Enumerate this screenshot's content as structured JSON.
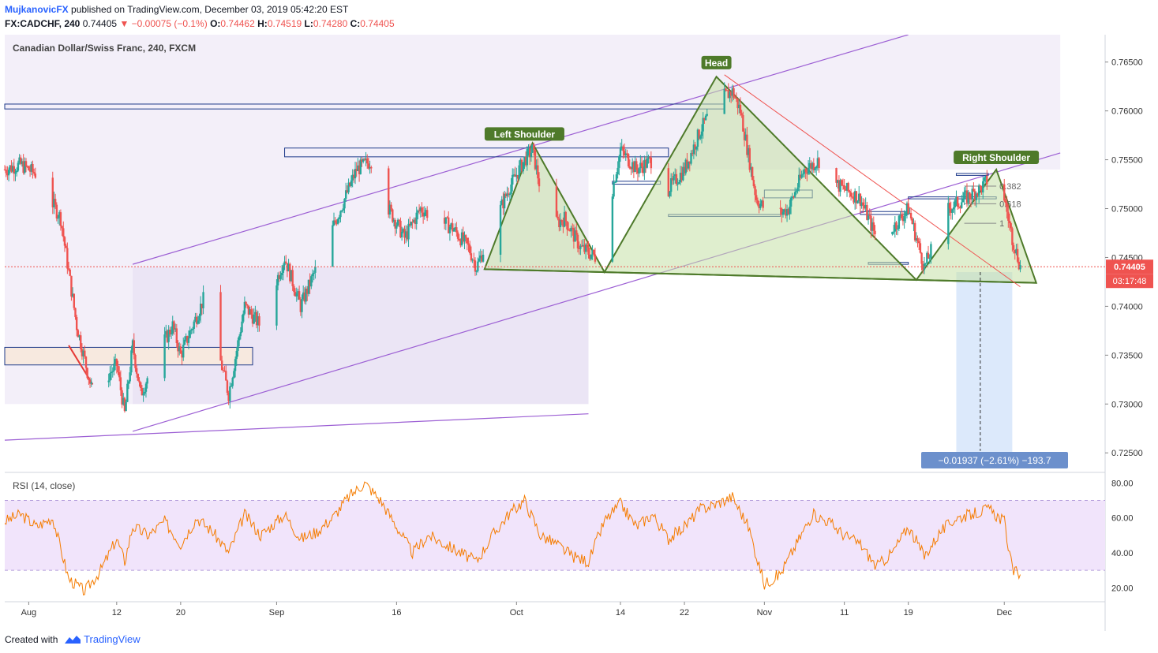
{
  "header": {
    "author": "MujkanovicFX",
    "published_text": "published on TradingView.com, December 03, 2019 05:42:20 EST",
    "symbol": "FX:CADCHF, 240",
    "last": "0.74405",
    "change": "▼ −0.00075 (−0.1%)",
    "o_label": "O:",
    "o_value": "0.74462",
    "h_label": "H:",
    "h_value": "0.74519",
    "l_label": "L:",
    "l_value": "0.74280",
    "c_label": "C:",
    "c_value": "0.74405"
  },
  "colors": {
    "up": "#26a69a",
    "down": "#ef5350",
    "channel": "#9c5fd4",
    "pattern": "#4e7a2a",
    "pattern_fill": "#c5e0a5",
    "box_line": "#1e3a8a",
    "rsi": "#f57c00",
    "rsi_band": "#f1e4fb",
    "price_tag": "#ef5350",
    "range_fill": "#dce9fb",
    "range_label": "#6c90cc"
  },
  "chart_data": {
    "type": "candlestick",
    "title": "Canadian Dollar/Swiss Franc, 240, FXCM",
    "y_ticks": [
      "0.76500",
      "0.76000",
      "0.75500",
      "0.75000",
      "0.74500",
      "0.74000",
      "0.73500",
      "0.73000",
      "0.72500"
    ],
    "ylim": [
      0.723,
      0.7678
    ],
    "x_ticks": [
      "Aug",
      "12",
      "20",
      "Sep",
      "16",
      "Oct",
      "14",
      "22",
      "Nov",
      "11",
      "19",
      "Dec"
    ],
    "last_price": "0.74405",
    "countdown": "03:17:48",
    "close_path": [
      [
        "Jul 29",
        0.754
      ],
      [
        "Jul 31",
        0.7545
      ],
      [
        "Aug 02",
        0.7535
      ],
      [
        "Aug 05",
        0.749
      ],
      [
        "Aug 07",
        0.738
      ],
      [
        "Aug 09",
        0.731
      ],
      [
        "Aug 10",
        0.732
      ],
      [
        "Aug 12",
        0.734
      ],
      [
        "Aug 13",
        0.729
      ],
      [
        "Aug 14",
        0.736
      ],
      [
        "Aug 15",
        0.731
      ],
      [
        "Aug 17",
        0.735
      ],
      [
        "Aug 19",
        0.738
      ],
      [
        "Aug 20",
        0.735
      ],
      [
        "Aug 22",
        0.739
      ],
      [
        "Aug 23",
        0.741
      ],
      [
        "Aug 26",
        0.731
      ],
      [
        "Aug 28",
        0.74
      ],
      [
        "Aug 30",
        0.738
      ],
      [
        "Sep 02",
        0.745
      ],
      [
        "Sep 04",
        0.74
      ],
      [
        "Sep 06",
        0.744
      ],
      [
        "Sep 09",
        0.75
      ],
      [
        "Sep 11",
        0.754
      ],
      [
        "Sep 13",
        0.755
      ],
      [
        "Sep 15",
        0.75
      ],
      [
        "Sep 17",
        0.747
      ],
      [
        "Sep 19",
        0.75
      ],
      [
        "Sep 21",
        0.749
      ],
      [
        "Sep 23",
        0.748
      ],
      [
        "Sep 25",
        0.746
      ],
      [
        "Sep 26",
        0.744
      ],
      [
        "Sep 28",
        0.748
      ],
      [
        "Sep 30",
        0.752
      ],
      [
        "Oct 02",
        0.755
      ],
      [
        "Oct 03",
        0.756
      ],
      [
        "Oct 05",
        0.748
      ],
      [
        "Oct 07",
        0.749
      ],
      [
        "Oct 09",
        0.746
      ],
      [
        "Oct 11",
        0.745
      ],
      [
        "Oct 13",
        0.752
      ],
      [
        "Oct 14",
        0.756
      ],
      [
        "Oct 16",
        0.754
      ],
      [
        "Oct 18",
        0.755
      ],
      [
        "Oct 20",
        0.752
      ],
      [
        "Oct 22",
        0.754
      ],
      [
        "Oct 24",
        0.758
      ],
      [
        "Oct 26",
        0.761
      ],
      [
        "Oct 28",
        0.762
      ],
      [
        "Oct 29",
        0.76
      ],
      [
        "Oct 31",
        0.751
      ],
      [
        "Nov 02",
        0.749
      ],
      [
        "Nov 04",
        0.75
      ],
      [
        "Nov 06",
        0.754
      ],
      [
        "Nov 08",
        0.755
      ],
      [
        "Nov 09",
        0.753
      ],
      [
        "Nov 11",
        0.752
      ],
      [
        "Nov 13",
        0.751
      ],
      [
        "Nov 15",
        0.747
      ],
      [
        "Nov 17",
        0.748
      ],
      [
        "Nov 19",
        0.75
      ],
      [
        "Nov 21",
        0.744
      ],
      [
        "Nov 22",
        0.746
      ],
      [
        "Nov 24",
        0.75
      ],
      [
        "Nov 26",
        0.751
      ],
      [
        "Nov 28",
        0.752
      ],
      [
        "Nov 29",
        0.753
      ],
      [
        "Dec 01",
        0.751
      ],
      [
        "Dec 02",
        0.747
      ],
      [
        "Dec 03",
        0.74405
      ]
    ],
    "pattern_labels": [
      "Left Shoulder",
      "Head",
      "Right Shoulder"
    ],
    "fib_labels": [
      "0.382",
      "0.618",
      "1"
    ],
    "measure_label": "−0.01937 (−2.61%) −193.7",
    "rsi": {
      "label": "RSI (14, close)",
      "y_ticks": [
        "80.00",
        "60.00",
        "40.00",
        "20.00"
      ],
      "band": [
        30,
        70
      ],
      "ylim": [
        12,
        86
      ],
      "path": [
        [
          "Jul 29",
          58
        ],
        [
          "Jul 31",
          62
        ],
        [
          "Aug 02",
          55
        ],
        [
          "Aug 04",
          60
        ],
        [
          "Aug 06",
          25
        ],
        [
          "Aug 08",
          18
        ],
        [
          "Aug 10",
          30
        ],
        [
          "Aug 12",
          48
        ],
        [
          "Aug 13",
          35
        ],
        [
          "Aug 14",
          55
        ],
        [
          "Aug 16",
          50
        ],
        [
          "Aug 18",
          58
        ],
        [
          "Aug 20",
          45
        ],
        [
          "Aug 22",
          60
        ],
        [
          "Aug 24",
          52
        ],
        [
          "Aug 26",
          40
        ],
        [
          "Aug 28",
          62
        ],
        [
          "Aug 30",
          50
        ],
        [
          "Sep 02",
          62
        ],
        [
          "Sep 04",
          48
        ],
        [
          "Sep 06",
          52
        ],
        [
          "Sep 08",
          60
        ],
        [
          "Sep 10",
          72
        ],
        [
          "Sep 12",
          80
        ],
        [
          "Sep 14",
          70
        ],
        [
          "Sep 16",
          55
        ],
        [
          "Sep 18",
          40
        ],
        [
          "Sep 20",
          50
        ],
        [
          "Sep 22",
          45
        ],
        [
          "Sep 24",
          40
        ],
        [
          "Sep 26",
          35
        ],
        [
          "Sep 28",
          50
        ],
        [
          "Sep 30",
          62
        ],
        [
          "Oct 02",
          70
        ],
        [
          "Oct 04",
          50
        ],
        [
          "Oct 06",
          45
        ],
        [
          "Oct 08",
          38
        ],
        [
          "Oct 10",
          35
        ],
        [
          "Oct 12",
          58
        ],
        [
          "Oct 14",
          68
        ],
        [
          "Oct 16",
          55
        ],
        [
          "Oct 18",
          62
        ],
        [
          "Oct 20",
          48
        ],
        [
          "Oct 22",
          55
        ],
        [
          "Oct 24",
          65
        ],
        [
          "Oct 26",
          68
        ],
        [
          "Oct 28",
          72
        ],
        [
          "Oct 30",
          55
        ],
        [
          "Nov 01",
          22
        ],
        [
          "Nov 03",
          28
        ],
        [
          "Nov 05",
          45
        ],
        [
          "Nov 07",
          62
        ],
        [
          "Nov 09",
          58
        ],
        [
          "Nov 11",
          50
        ],
        [
          "Nov 13",
          45
        ],
        [
          "Nov 15",
          32
        ],
        [
          "Nov 17",
          40
        ],
        [
          "Nov 19",
          55
        ],
        [
          "Nov 21",
          38
        ],
        [
          "Nov 23",
          52
        ],
        [
          "Nov 25",
          60
        ],
        [
          "Nov 27",
          62
        ],
        [
          "Nov 29",
          65
        ],
        [
          "Dec 01",
          58
        ],
        [
          "Dec 02",
          30
        ],
        [
          "Dec 03",
          28
        ]
      ]
    }
  },
  "footer": {
    "created_with": "Created with",
    "brand": "TradingView"
  }
}
